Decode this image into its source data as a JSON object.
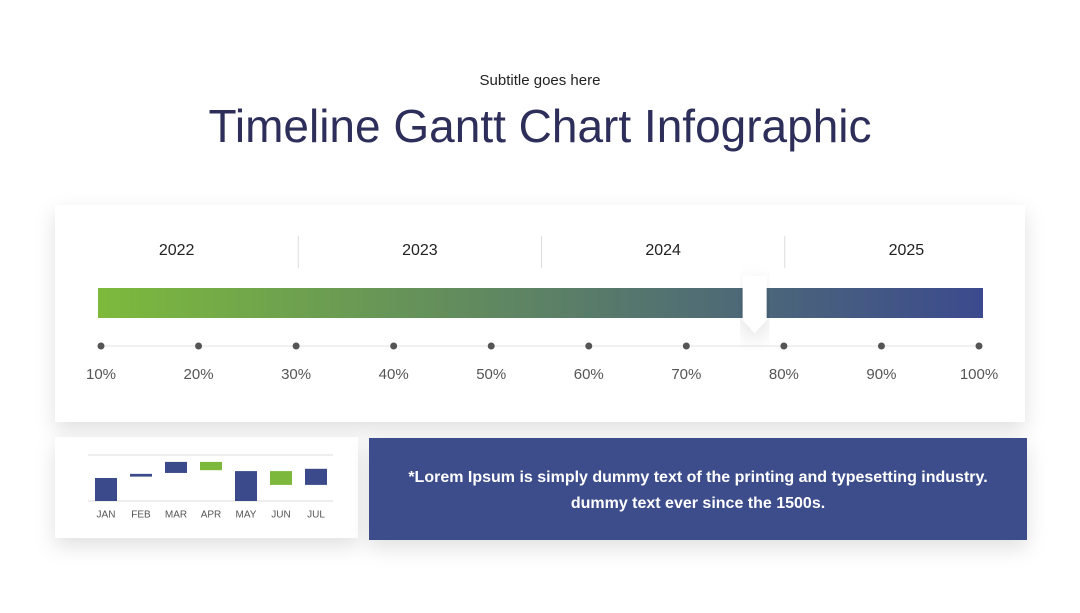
{
  "subtitle": "Subtitle goes here",
  "title": "Timeline Gantt Chart Infographic",
  "timeline": {
    "years": [
      "2022",
      "2023",
      "2024",
      "2025"
    ],
    "xlim": [
      10,
      100
    ],
    "ticks": [
      {
        "value": 10,
        "label": "10%"
      },
      {
        "value": 20,
        "label": "20%"
      },
      {
        "value": 30,
        "label": "30%"
      },
      {
        "value": 40,
        "label": "40%"
      },
      {
        "value": 50,
        "label": "50%"
      },
      {
        "value": 60,
        "label": "60%"
      },
      {
        "value": 70,
        "label": "70%"
      },
      {
        "value": 80,
        "label": "80%"
      },
      {
        "value": 90,
        "label": "90%"
      },
      {
        "value": 100,
        "label": "100%"
      }
    ],
    "marker": 77,
    "gradient": [
      "#7dba3c",
      "#3b4a8e"
    ]
  },
  "mini_chart": {
    "type": "floating-bar",
    "categories": [
      "JAN",
      "FEB",
      "MAR",
      "APR",
      "MAY",
      "JUN",
      "JUL"
    ],
    "low": [
      0,
      5.3,
      6.1,
      6.7,
      0,
      3.5,
      3.5
    ],
    "high": [
      5,
      5.9,
      8.5,
      8.5,
      6.5,
      6.5,
      7
    ],
    "colors": [
      "#3b4a8a",
      "#3b4a8a",
      "#3b4a8a",
      "#7cb83b",
      "#3b4a8a",
      "#7cb83b",
      "#3b4a8a"
    ],
    "ylim": [
      0,
      10
    ]
  },
  "note": {
    "lines": [
      "*Lorem Ipsum is simply dummy text of the printing and typesetting industry.",
      "dummy text ever since the 1500s."
    ]
  }
}
